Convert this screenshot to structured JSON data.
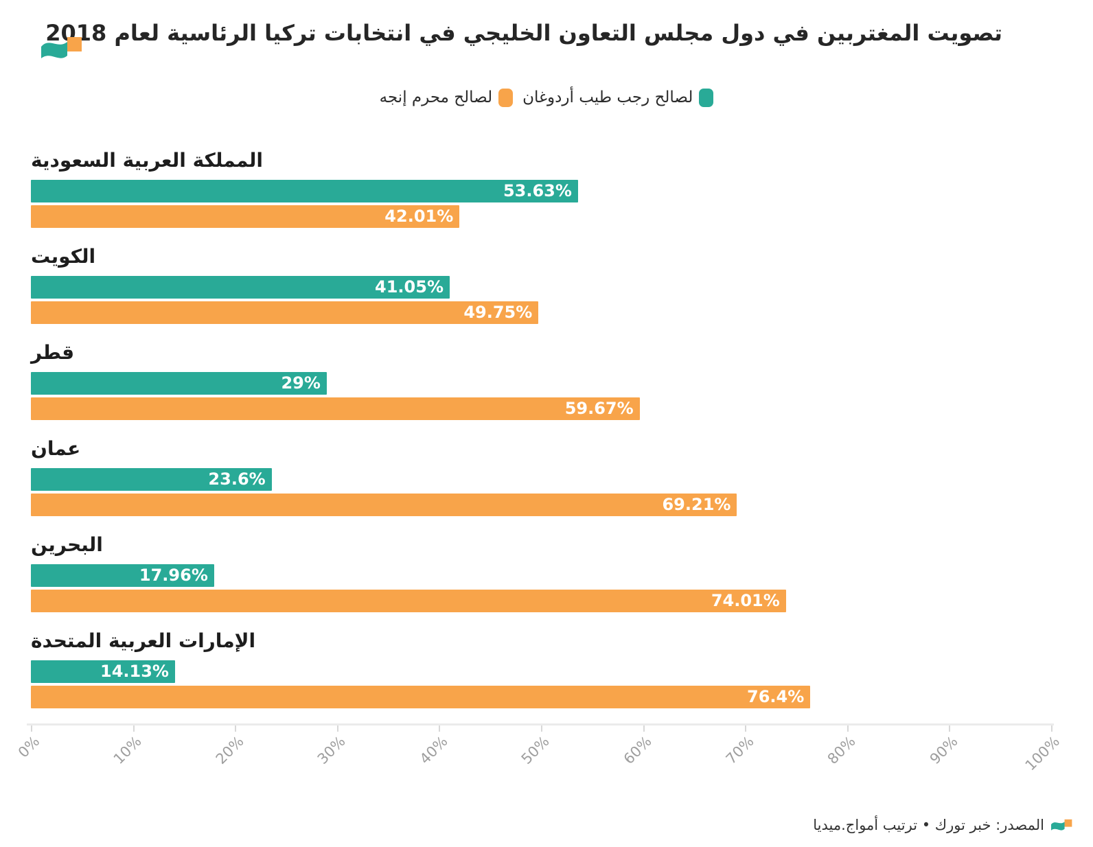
{
  "brand": {
    "teal": "#29AA97",
    "orange": "#F8A44A"
  },
  "header": {
    "title": "تصويت المغتربين في دول مجلس التعاون الخليجي في انتخابات تركيا الرئاسية لعام 2018"
  },
  "chart_data": {
    "type": "bar",
    "orientation": "horizontal",
    "title": "تصويت المغتربين في دول مجلس التعاون الخليجي في انتخابات تركيا الرئاسية لعام 2018",
    "categories": [
      "المملكة العربية السعودية",
      "الكويت",
      "قطر",
      "عمان",
      "البحرين",
      "الإمارات العربية المتحدة"
    ],
    "series": [
      {
        "name": "لصالح رجب طيب أردوغان",
        "color": "#29AA97",
        "values": [
          53.63,
          41.05,
          29,
          23.6,
          17.96,
          14.13
        ],
        "data_labels": [
          "53.63%",
          "41.05%",
          "29%",
          "23.6%",
          "17.96%",
          "14.13%"
        ]
      },
      {
        "name": "لصالح محرم إنجه",
        "color": "#F8A44A",
        "values": [
          42.01,
          49.75,
          59.67,
          69.21,
          74.01,
          76.4
        ],
        "data_labels": [
          "42.01%",
          "49.75%",
          "59.67%",
          "69.21%",
          "74.01%",
          "76.4%"
        ]
      }
    ],
    "xlim": [
      0,
      100
    ],
    "x_ticks": [
      "0%",
      "10%",
      "20%",
      "30%",
      "40%",
      "50%",
      "60%",
      "70%",
      "80%",
      "90%",
      "100%"
    ],
    "grid": false,
    "legend_position": "top-center",
    "value_labels": "inside-end"
  },
  "footer": {
    "source": "المصدر: خبر تورك • ترتيب أمواج.ميديا"
  }
}
